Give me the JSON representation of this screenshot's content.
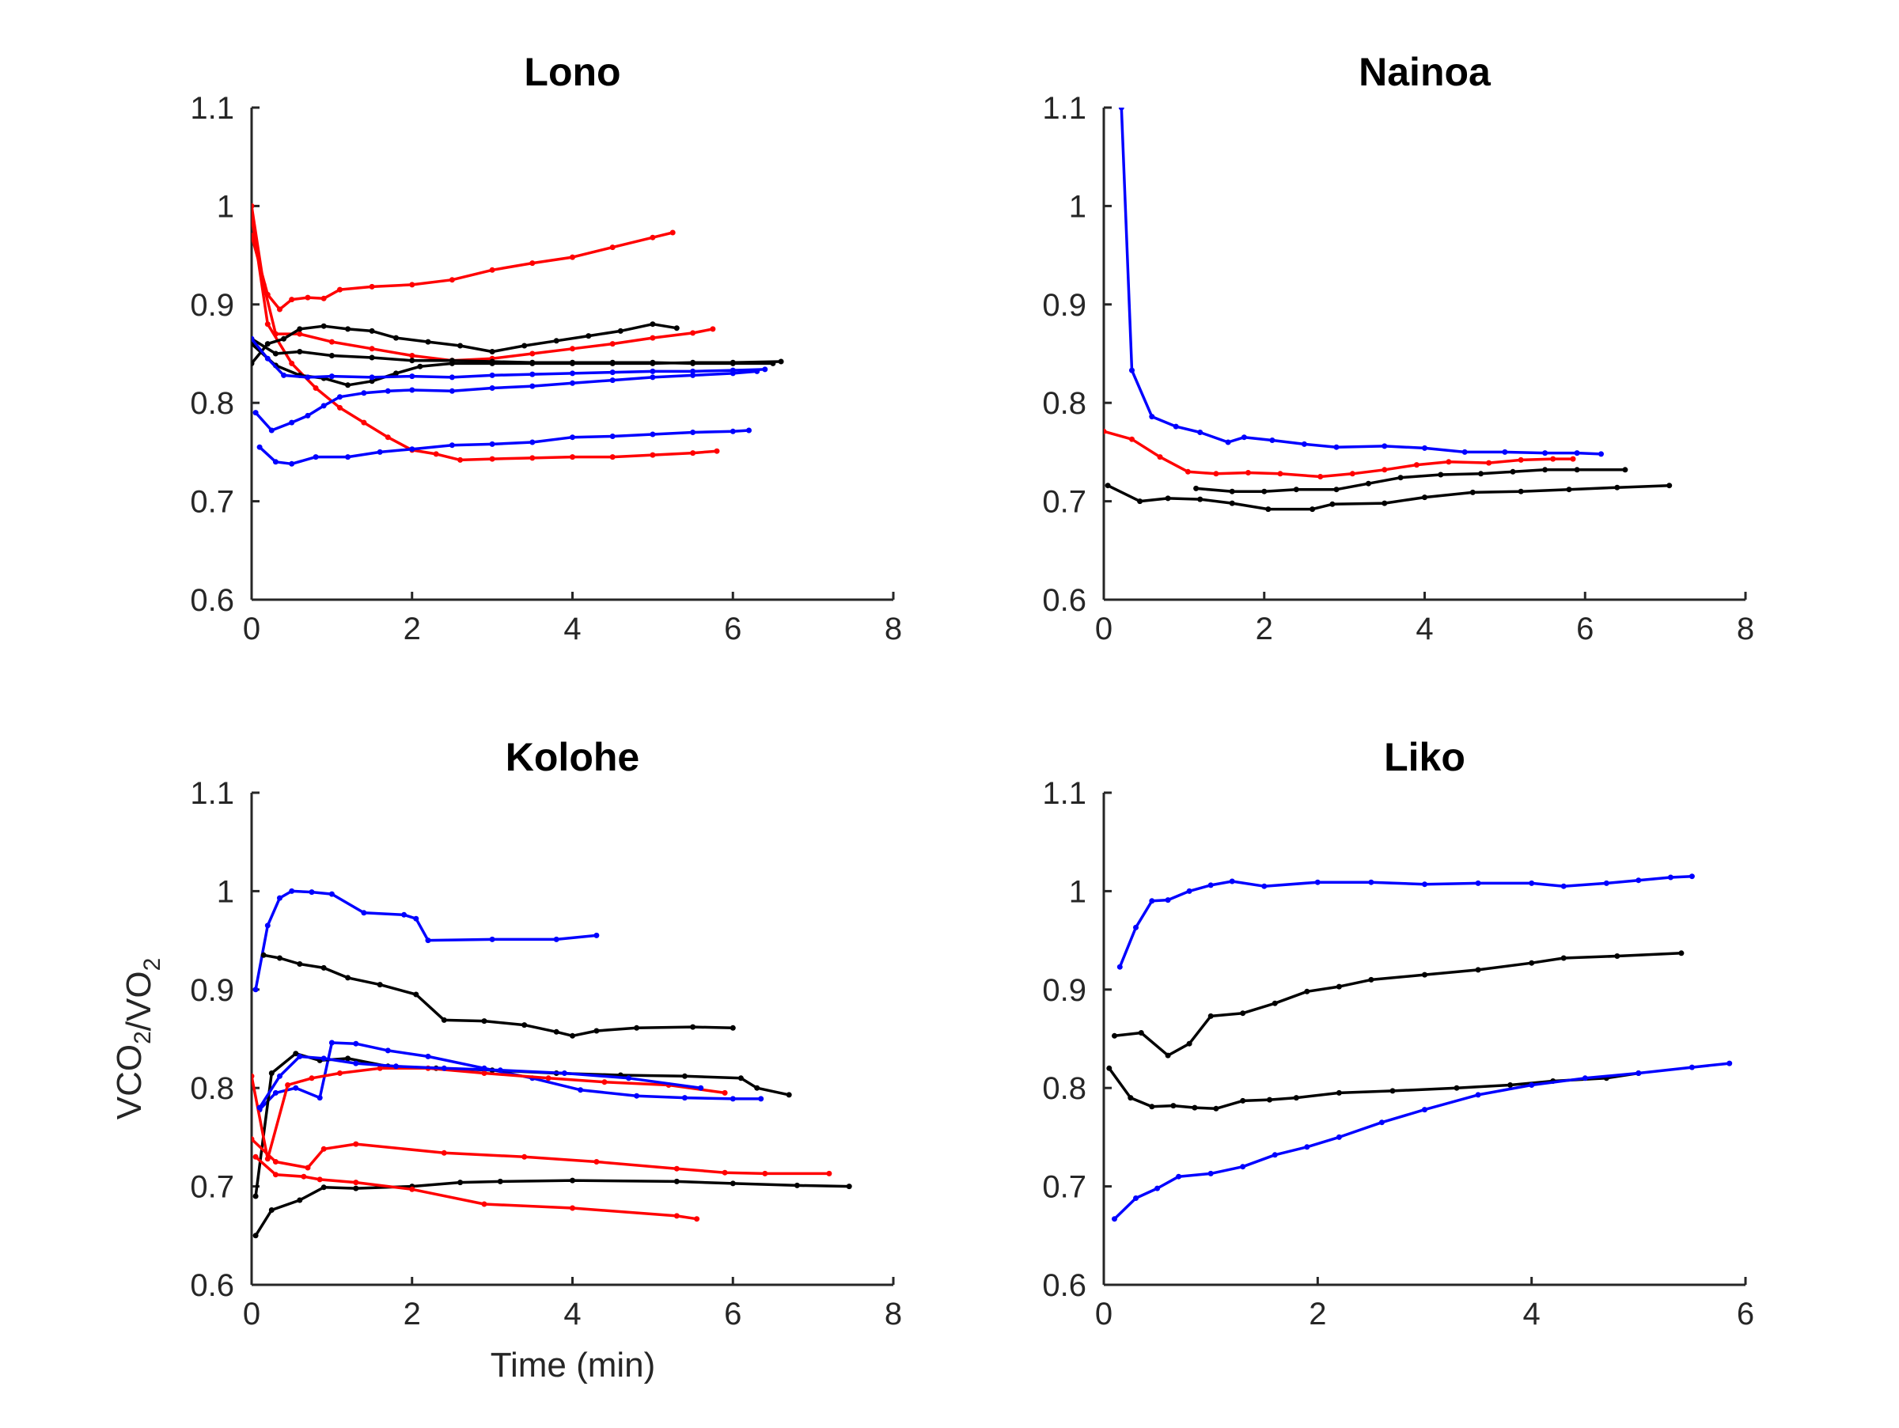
{
  "figure": {
    "ylabel": "VCO2/VO2",
    "xlabel": "Time (min)"
  },
  "chart_data": [
    {
      "type": "line",
      "title": "Lono",
      "xlim": [
        0,
        8
      ],
      "ylim": [
        0.6,
        1.1
      ],
      "xticks": [
        "0",
        "2",
        "4",
        "6",
        "8"
      ],
      "yticks": [
        "0.6",
        "0.7",
        "0.8",
        "0.9",
        "1",
        "1.1"
      ],
      "series": [
        {
          "color": "#ff0000",
          "x": [
            0,
            0.2,
            0.35,
            0.5,
            0.7,
            0.9,
            1.1,
            1.5,
            2,
            2.5,
            3,
            3.5,
            4,
            4.5,
            5,
            5.25
          ],
          "y": [
            0.97,
            0.91,
            0.895,
            0.905,
            0.907,
            0.906,
            0.915,
            0.918,
            0.92,
            0.925,
            0.935,
            0.942,
            0.948,
            0.958,
            0.968,
            0.973
          ]
        },
        {
          "color": "#ff0000",
          "x": [
            0,
            0.15,
            0.3,
            0.6,
            1,
            1.5,
            2,
            2.5,
            3,
            3.5,
            4,
            4.5,
            5,
            5.5,
            5.75
          ],
          "y": [
            1.0,
            0.92,
            0.87,
            0.87,
            0.862,
            0.855,
            0.848,
            0.843,
            0.845,
            0.85,
            0.855,
            0.86,
            0.866,
            0.871,
            0.875
          ]
        },
        {
          "color": "#ff0000",
          "x": [
            0,
            0.2,
            0.5,
            0.8,
            1.1,
            1.4,
            1.7,
            2,
            2.3,
            2.6,
            3,
            3.5,
            4,
            4.5,
            5,
            5.5,
            5.8
          ],
          "y": [
            0.99,
            0.88,
            0.84,
            0.815,
            0.795,
            0.78,
            0.765,
            0.752,
            0.748,
            0.742,
            0.743,
            0.744,
            0.745,
            0.745,
            0.747,
            0.749,
            0.751
          ]
        },
        {
          "color": "#000000",
          "x": [
            0,
            0.2,
            0.4,
            0.6,
            0.9,
            1.2,
            1.5,
            1.8,
            2.2,
            2.6,
            3,
            3.4,
            3.8,
            4.2,
            4.6,
            5,
            5.3
          ],
          "y": [
            0.84,
            0.86,
            0.865,
            0.875,
            0.878,
            0.875,
            0.873,
            0.866,
            0.862,
            0.858,
            0.852,
            0.858,
            0.863,
            0.868,
            0.873,
            0.88,
            0.876
          ]
        },
        {
          "color": "#000000",
          "x": [
            0,
            0.3,
            0.6,
            1,
            1.5,
            2,
            2.5,
            3,
            3.5,
            4,
            4.5,
            5,
            5.5,
            6,
            6.5
          ],
          "y": [
            0.865,
            0.85,
            0.852,
            0.848,
            0.846,
            0.843,
            0.843,
            0.842,
            0.841,
            0.841,
            0.841,
            0.841,
            0.84,
            0.84,
            0.84
          ]
        },
        {
          "color": "#000000",
          "x": [
            0,
            0.3,
            0.6,
            0.9,
            1.2,
            1.5,
            1.8,
            2.1,
            2.5,
            3,
            3.5,
            4,
            4.5,
            5,
            5.5,
            6,
            6.6
          ],
          "y": [
            0.86,
            0.838,
            0.828,
            0.825,
            0.818,
            0.822,
            0.83,
            0.837,
            0.84,
            0.84,
            0.84,
            0.84,
            0.84,
            0.84,
            0.841,
            0.841,
            0.842
          ]
        },
        {
          "color": "#0000ff",
          "x": [
            0,
            0.2,
            0.4,
            0.7,
            1,
            1.5,
            2,
            2.5,
            3,
            3.5,
            4,
            4.5,
            5,
            5.5,
            6,
            6.4
          ],
          "y": [
            0.865,
            0.845,
            0.828,
            0.826,
            0.827,
            0.826,
            0.827,
            0.826,
            0.828,
            0.829,
            0.83,
            0.831,
            0.832,
            0.832,
            0.833,
            0.834
          ]
        },
        {
          "color": "#0000ff",
          "x": [
            0.05,
            0.25,
            0.5,
            0.7,
            0.9,
            1.1,
            1.4,
            1.7,
            2,
            2.5,
            3,
            3.5,
            4,
            4.5,
            5,
            5.5,
            6,
            6.3
          ],
          "y": [
            0.79,
            0.772,
            0.78,
            0.787,
            0.797,
            0.806,
            0.81,
            0.812,
            0.813,
            0.812,
            0.815,
            0.817,
            0.82,
            0.823,
            0.826,
            0.828,
            0.83,
            0.832
          ]
        },
        {
          "color": "#0000ff",
          "x": [
            0.1,
            0.3,
            0.5,
            0.8,
            1.2,
            1.6,
            2,
            2.5,
            3,
            3.5,
            4,
            4.5,
            5,
            5.5,
            6,
            6.2
          ],
          "y": [
            0.755,
            0.74,
            0.738,
            0.745,
            0.745,
            0.75,
            0.753,
            0.757,
            0.758,
            0.76,
            0.765,
            0.766,
            0.768,
            0.77,
            0.771,
            0.772
          ]
        }
      ]
    },
    {
      "type": "line",
      "title": "Nainoa",
      "xlim": [
        0,
        8
      ],
      "ylim": [
        0.6,
        1.1
      ],
      "xticks": [
        "0",
        "2",
        "4",
        "6",
        "8"
      ],
      "yticks": [
        "0.6",
        "0.7",
        "0.8",
        "0.9",
        "1",
        "1.1"
      ],
      "series": [
        {
          "color": "#0000ff",
          "x": [
            0.22,
            0.35,
            0.6,
            0.9,
            1.2,
            1.55,
            1.75,
            2.1,
            2.5,
            2.9,
            3.5,
            4,
            4.5,
            5,
            5.5,
            5.9,
            6.2
          ],
          "y": [
            1.1,
            0.833,
            0.786,
            0.776,
            0.77,
            0.76,
            0.765,
            0.762,
            0.758,
            0.755,
            0.756,
            0.754,
            0.75,
            0.75,
            0.749,
            0.749,
            0.748
          ]
        },
        {
          "color": "#ff0000",
          "x": [
            0,
            0.35,
            0.7,
            1.05,
            1.4,
            1.8,
            2.2,
            2.7,
            3.1,
            3.5,
            3.9,
            4.3,
            4.8,
            5.2,
            5.6,
            5.85
          ],
          "y": [
            0.771,
            0.763,
            0.745,
            0.73,
            0.728,
            0.729,
            0.728,
            0.725,
            0.728,
            0.732,
            0.737,
            0.74,
            0.739,
            0.742,
            0.743,
            0.743
          ]
        },
        {
          "color": "#000000",
          "x": [
            1.15,
            1.6,
            2,
            2.4,
            2.9,
            3.3,
            3.7,
            4.2,
            4.7,
            5.1,
            5.5,
            5.9,
            6.5
          ],
          "y": [
            0.713,
            0.71,
            0.71,
            0.712,
            0.712,
            0.718,
            0.724,
            0.727,
            0.728,
            0.73,
            0.732,
            0.732,
            0.732
          ]
        },
        {
          "color": "#000000",
          "x": [
            0.05,
            0.45,
            0.8,
            1.2,
            1.6,
            2.05,
            2.6,
            2.85,
            3.5,
            4,
            4.6,
            5.2,
            5.8,
            6.4,
            7.05
          ],
          "y": [
            0.716,
            0.7,
            0.703,
            0.702,
            0.698,
            0.692,
            0.692,
            0.697,
            0.698,
            0.704,
            0.709,
            0.71,
            0.712,
            0.714,
            0.716
          ]
        }
      ]
    },
    {
      "type": "line",
      "title": "Kolohe",
      "xlim": [
        0,
        8
      ],
      "ylim": [
        0.6,
        1.1
      ],
      "xticks": [
        "0",
        "2",
        "4",
        "6",
        "8"
      ],
      "yticks": [
        "0.6",
        "0.7",
        "0.8",
        "0.9",
        "1",
        "1.1"
      ],
      "series": [
        {
          "color": "#0000ff",
          "x": [
            0.05,
            0.2,
            0.35,
            0.5,
            0.75,
            1,
            1.4,
            1.9,
            2.05,
            2.2,
            3,
            3.8,
            4.3
          ],
          "y": [
            0.9,
            0.965,
            0.993,
            1.0,
            0.999,
            0.997,
            0.978,
            0.976,
            0.972,
            0.95,
            0.951,
            0.951,
            0.955
          ]
        },
        {
          "color": "#000000",
          "x": [
            0.15,
            0.35,
            0.6,
            0.9,
            1.2,
            1.6,
            2.05,
            2.4,
            2.9,
            3.4,
            3.8,
            4,
            4.3,
            4.8,
            5.5,
            6
          ],
          "y": [
            0.935,
            0.932,
            0.926,
            0.922,
            0.912,
            0.905,
            0.895,
            0.869,
            0.868,
            0.864,
            0.857,
            0.853,
            0.858,
            0.861,
            0.862,
            0.861
          ]
        },
        {
          "color": "#0000ff",
          "x": [
            0.1,
            0.3,
            0.55,
            0.85,
            1,
            1.3,
            1.7,
            2.2,
            2.9,
            3.5,
            4.1,
            4.8,
            5.4,
            6,
            6.35
          ],
          "y": [
            0.778,
            0.795,
            0.8,
            0.79,
            0.846,
            0.845,
            0.838,
            0.832,
            0.82,
            0.81,
            0.798,
            0.792,
            0.79,
            0.789,
            0.789
          ]
        },
        {
          "color": "#000000",
          "x": [
            0.05,
            0.25,
            0.55,
            0.85,
            1.2,
            1.7,
            2.3,
            3,
            3.8,
            4.6,
            5.4,
            6.1,
            6.3,
            6.7
          ],
          "y": [
            0.69,
            0.815,
            0.835,
            0.828,
            0.83,
            0.822,
            0.82,
            0.818,
            0.815,
            0.813,
            0.812,
            0.81,
            0.8,
            0.793
          ]
        },
        {
          "color": "#ff0000",
          "x": [
            0,
            0.2,
            0.45,
            0.75,
            1.1,
            1.6,
            2.2,
            2.9,
            3.7,
            4.4,
            5.2,
            5.9
          ],
          "y": [
            0.812,
            0.728,
            0.803,
            0.81,
            0.815,
            0.82,
            0.82,
            0.815,
            0.81,
            0.806,
            0.803,
            0.795
          ]
        },
        {
          "color": "#0000ff",
          "x": [
            0.1,
            0.35,
            0.6,
            0.9,
            1.3,
            1.8,
            2.4,
            3.1,
            3.9,
            4.7,
            5.6
          ],
          "y": [
            0.78,
            0.812,
            0.832,
            0.83,
            0.825,
            0.822,
            0.82,
            0.818,
            0.815,
            0.81,
            0.8
          ]
        },
        {
          "color": "#ff0000",
          "x": [
            0,
            0.3,
            0.7,
            0.9,
            1.3,
            2.4,
            3.4,
            4.3,
            5.3,
            5.9,
            6.4,
            7.2
          ],
          "y": [
            0.748,
            0.725,
            0.719,
            0.738,
            0.743,
            0.734,
            0.73,
            0.725,
            0.718,
            0.714,
            0.713,
            0.713
          ]
        },
        {
          "color": "#000000",
          "x": [
            0.05,
            0.25,
            0.6,
            0.9,
            1.3,
            2,
            2.6,
            3.1,
            4,
            5.3,
            6,
            6.8,
            7.45
          ],
          "y": [
            0.65,
            0.676,
            0.686,
            0.699,
            0.698,
            0.7,
            0.704,
            0.705,
            0.706,
            0.705,
            0.703,
            0.701,
            0.7
          ]
        },
        {
          "color": "#ff0000",
          "x": [
            0.05,
            0.3,
            0.65,
            0.85,
            1.3,
            2,
            2.9,
            4,
            5.3,
            5.55
          ],
          "y": [
            0.73,
            0.712,
            0.71,
            0.707,
            0.704,
            0.697,
            0.682,
            0.678,
            0.67,
            0.667
          ]
        }
      ]
    },
    {
      "type": "line",
      "title": "Liko",
      "xlim": [
        0,
        6
      ],
      "ylim": [
        0.6,
        1.1
      ],
      "xticks": [
        "0",
        "2",
        "4",
        "6"
      ],
      "yticks": [
        "0.6",
        "0.7",
        "0.8",
        "0.9",
        "1",
        "1.1"
      ],
      "series": [
        {
          "color": "#0000ff",
          "x": [
            0.15,
            0.3,
            0.45,
            0.6,
            0.8,
            1,
            1.2,
            1.5,
            2,
            2.5,
            3,
            3.5,
            4,
            4.3,
            4.7,
            5,
            5.3,
            5.5
          ],
          "y": [
            0.923,
            0.963,
            0.99,
            0.991,
            1.0,
            1.006,
            1.01,
            1.005,
            1.009,
            1.009,
            1.007,
            1.008,
            1.008,
            1.005,
            1.008,
            1.011,
            1.014,
            1.015
          ]
        },
        {
          "color": "#000000",
          "x": [
            0.1,
            0.35,
            0.6,
            0.8,
            1,
            1.3,
            1.6,
            1.9,
            2.2,
            2.5,
            3,
            3.5,
            4,
            4.3,
            4.8,
            5.4
          ],
          "y": [
            0.853,
            0.856,
            0.833,
            0.845,
            0.873,
            0.876,
            0.886,
            0.898,
            0.903,
            0.91,
            0.915,
            0.92,
            0.927,
            0.932,
            0.934,
            0.937
          ]
        },
        {
          "color": "#000000",
          "x": [
            0.05,
            0.25,
            0.45,
            0.65,
            0.85,
            1.05,
            1.3,
            1.55,
            1.8,
            2.2,
            2.7,
            3.3,
            3.8,
            4.2,
            4.7,
            5
          ],
          "y": [
            0.82,
            0.79,
            0.781,
            0.782,
            0.78,
            0.779,
            0.787,
            0.788,
            0.79,
            0.795,
            0.797,
            0.8,
            0.803,
            0.807,
            0.81,
            0.815
          ]
        },
        {
          "color": "#0000ff",
          "x": [
            0.1,
            0.3,
            0.5,
            0.7,
            1,
            1.3,
            1.6,
            1.9,
            2.2,
            2.6,
            3,
            3.5,
            4,
            4.5,
            5,
            5.5,
            5.85
          ],
          "y": [
            0.667,
            0.688,
            0.698,
            0.71,
            0.713,
            0.72,
            0.732,
            0.74,
            0.75,
            0.765,
            0.778,
            0.793,
            0.803,
            0.81,
            0.815,
            0.821,
            0.825
          ]
        }
      ]
    }
  ]
}
